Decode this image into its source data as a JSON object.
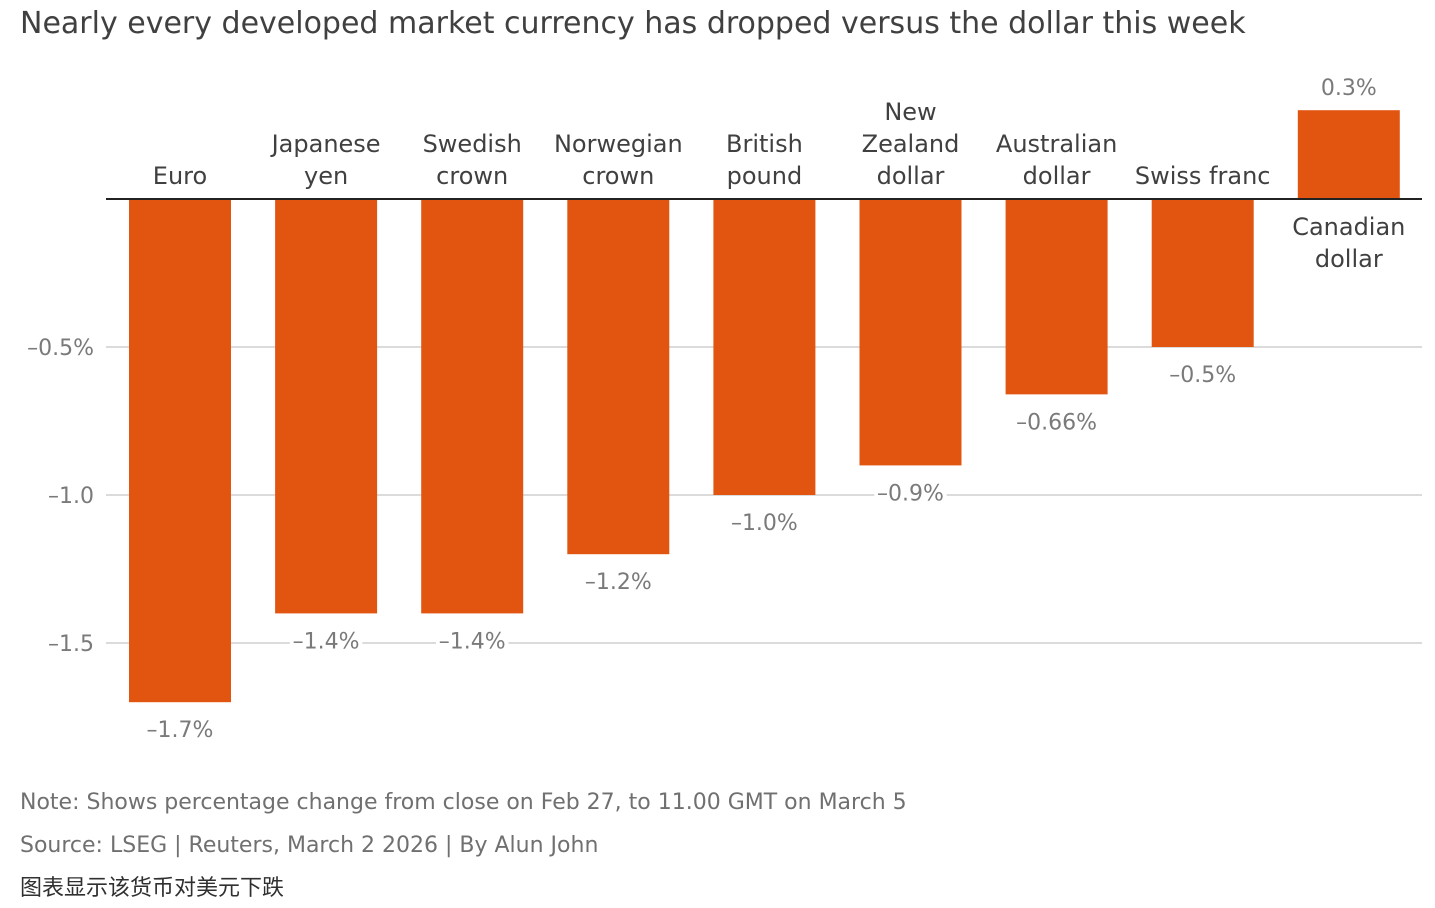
{
  "title": "Nearly every developed market currency has dropped versus the dollar this week",
  "note": "Note: Shows percentage change from close on Feb 27, to 11.00 GMT on March 5",
  "source": "Source: LSEG | Reuters, March 2 2026 | By Alun John",
  "caption_cn": "图表显示该货币对美元下跌",
  "colors": {
    "bar": "#e25511",
    "grid": "#cfcfcf",
    "axis": "#222222",
    "label": "#7a7a7a",
    "category": "#404040"
  },
  "chart_data": {
    "type": "bar",
    "title": "Nearly every developed market currency has dropped versus the dollar this week",
    "categories": [
      [
        "Euro"
      ],
      [
        "Japanese",
        "yen"
      ],
      [
        "Swedish",
        "crown"
      ],
      [
        "Norwegian",
        "crown"
      ],
      [
        "British",
        "pound"
      ],
      [
        "New",
        "Zealand",
        "dollar"
      ],
      [
        "Australian",
        "dollar"
      ],
      [
        "Swiss franc"
      ],
      [
        "Canadian",
        "dollar"
      ]
    ],
    "values": [
      -1.7,
      -1.4,
      -1.4,
      -1.2,
      -1.0,
      -0.9,
      -0.66,
      -0.5,
      0.3
    ],
    "value_labels": [
      "–1.7%",
      "–1.4%",
      "–1.4%",
      "–1.2%",
      "–1.0%",
      "–0.9%",
      "–0.66%",
      "–0.5%",
      "0.3%"
    ],
    "yticks": [
      {
        "value": -0.5,
        "label": "–0.5%"
      },
      {
        "value": -1.0,
        "label": "–1.0"
      },
      {
        "value": -1.5,
        "label": "–1.5"
      }
    ],
    "ylim": [
      -1.8,
      0.35
    ],
    "xlabel": "",
    "ylabel": "",
    "grid": true,
    "legend": "none"
  }
}
